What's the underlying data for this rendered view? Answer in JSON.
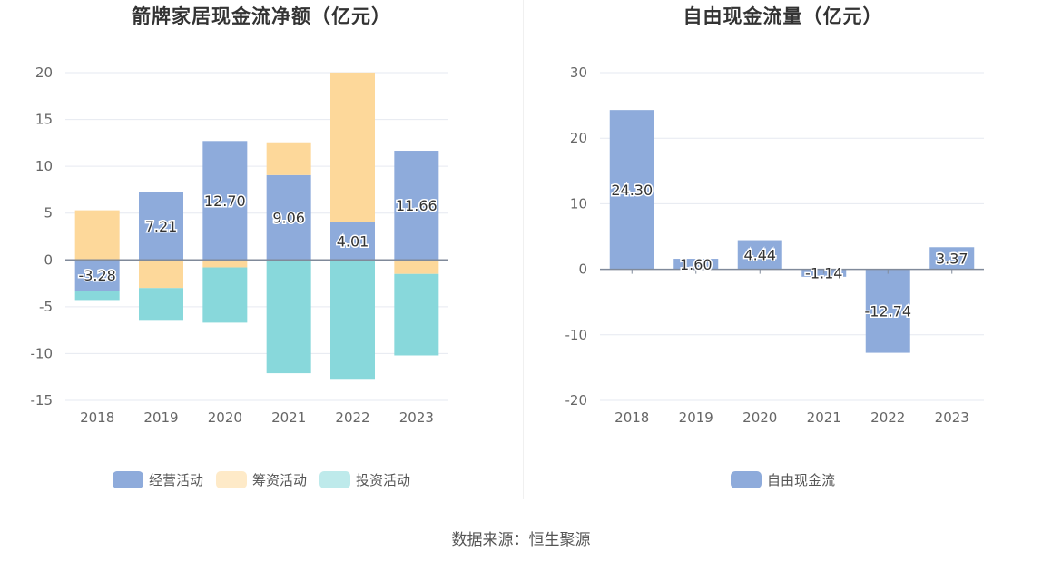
{
  "chart_data": [
    {
      "type": "bar",
      "stacked": true,
      "title": "箭牌家居现金流净额（亿元）",
      "categories": [
        "2018",
        "2019",
        "2020",
        "2021",
        "2022",
        "2023"
      ],
      "ylim": [
        -15,
        20
      ],
      "yticks": [
        "20",
        "15",
        "10",
        "5",
        "0",
        "-5",
        "-10",
        "-15"
      ],
      "grid": true,
      "legend_position": "bottom",
      "series": [
        {
          "name": "经营活动",
          "color": "#8eabdb",
          "values": [
            -3.28,
            7.21,
            12.7,
            9.06,
            4.01,
            11.66
          ],
          "labels": [
            "-3.28",
            "7.21",
            "12.70",
            "9.06",
            "4.01",
            "11.66"
          ]
        },
        {
          "name": "筹资活动",
          "color": "#fdd89a",
          "values": [
            5.3,
            -3.0,
            -0.8,
            3.5,
            16.0,
            -1.5
          ]
        },
        {
          "name": "投资活动",
          "color": "#88d8db",
          "values": [
            -1.0,
            -3.5,
            -5.9,
            -12.1,
            -12.7,
            -8.7
          ]
        }
      ]
    },
    {
      "type": "bar",
      "title": "自由现金流量（亿元）",
      "categories": [
        "2018",
        "2019",
        "2020",
        "2021",
        "2022",
        "2023"
      ],
      "ylim": [
        -20,
        30
      ],
      "yticks": [
        "30",
        "20",
        "10",
        "0",
        "-10",
        "-20"
      ],
      "grid": true,
      "legend_position": "bottom",
      "series": [
        {
          "name": "自由现金流",
          "color": "#8eabdb",
          "values": [
            24.3,
            1.6,
            4.44,
            -1.14,
            -12.74,
            3.37
          ],
          "labels": [
            "24.30",
            "1.60",
            "4.44",
            "-1.14",
            "-12.74",
            "3.37"
          ]
        }
      ]
    }
  ],
  "source_text": "数据来源：恒生聚源"
}
